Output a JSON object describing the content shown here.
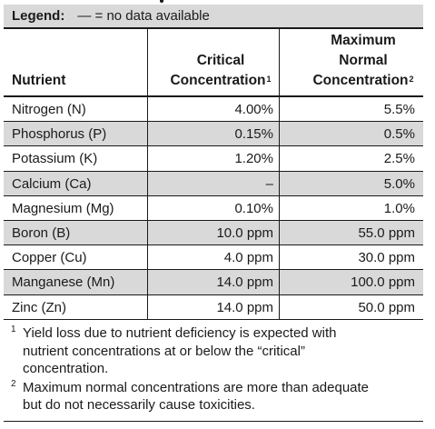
{
  "legend": {
    "label": "Legend:",
    "text": "— = no data available"
  },
  "header": {
    "nutrient": "Nutrient",
    "critical_line1": "Critical",
    "critical_line2": "Concentration",
    "critical_sup": "1",
    "max_line1": "Maximum",
    "max_line2": "Normal",
    "max_line3": "Concentration",
    "max_sup": "2"
  },
  "rows": [
    {
      "nutrient": "Nitrogen (N)",
      "critical": "4.00%",
      "max": "5.5%"
    },
    {
      "nutrient": "Phosphorus (P)",
      "critical": "0.15%",
      "max": "0.5%"
    },
    {
      "nutrient": "Potassium (K)",
      "critical": "1.20%",
      "max": "2.5%"
    },
    {
      "nutrient": "Calcium (Ca)",
      "critical": "–",
      "max": "5.0%"
    },
    {
      "nutrient": "Magnesium (Mg)",
      "critical": "0.10%",
      "max": "1.0%"
    },
    {
      "nutrient": "Boron (B)",
      "critical": "10.0 ppm",
      "max": "55.0 ppm"
    },
    {
      "nutrient": "Copper (Cu)",
      "critical": "4.0 ppm",
      "max": "30.0 ppm"
    },
    {
      "nutrient": "Manganese (Mn)",
      "critical": "14.0 ppm",
      "max": "100.0 ppm"
    },
    {
      "nutrient": "Zinc (Zn)",
      "critical": "14.0 ppm",
      "max": "50.0 ppm"
    }
  ],
  "footnotes": [
    {
      "mark": "1",
      "lines": [
        "Yield loss due to nutrient deficiency is expected with",
        "nutrient concentrations at or below the “critical”",
        "concentration."
      ]
    },
    {
      "mark": "2",
      "lines": [
        "Maximum normal concentrations are more than adequate",
        "but do not necessarily cause toxicities."
      ]
    }
  ],
  "colors": {
    "shade": "#d9d9d9",
    "text": "#1a1a1a"
  }
}
